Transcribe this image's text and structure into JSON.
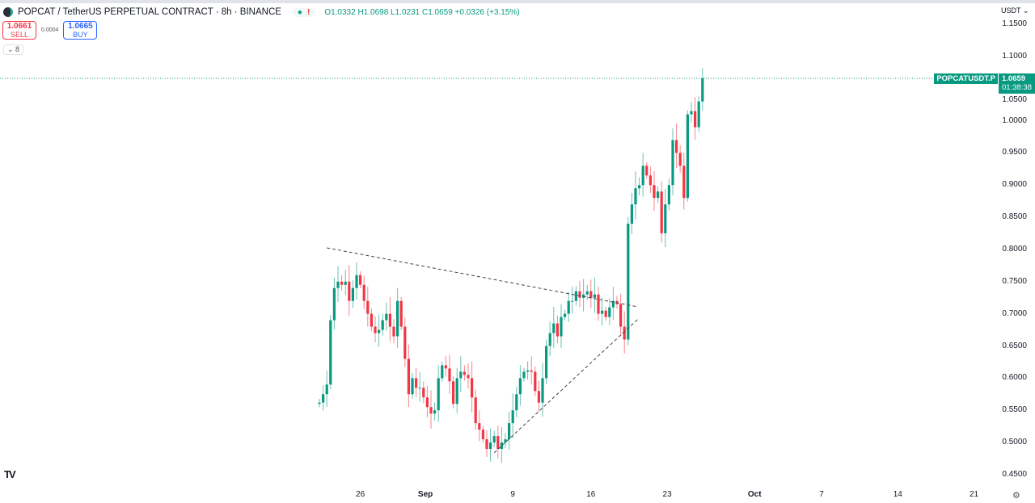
{
  "header": {
    "symbol": "POPCAT / TetherUS PERPETUAL CONTRACT · 8h · BINANCE",
    "status_dot": "●",
    "warning": "!",
    "ohlc": "O1.0332 H1.0698 L1.0231 C1.0659 +0.0326 (+3.15%)"
  },
  "trade": {
    "sell_price": "1.0661",
    "sell_label": "SELL",
    "spread": "0.0004",
    "buy_price": "1.0665",
    "buy_label": "BUY",
    "indicators_toggle": "⌄ 8"
  },
  "axis": {
    "currency": "USDT ⌄",
    "ticker_tag": "POPCATUSDT.P",
    "last_price": "1.0659",
    "countdown": "01:38:38",
    "settings_icon": "⚙"
  },
  "colors": {
    "up": "#089981",
    "down": "#f23645",
    "accent": "#089981"
  },
  "chart_data": {
    "type": "candlestick",
    "title": "POPCAT / TetherUS PERPETUAL CONTRACT · 8h · BINANCE",
    "ylim": [
      0.45,
      1.15
    ],
    "y_ticks": [
      "1.1500",
      "1.1000",
      "1.0500",
      "1.0000",
      "0.9500",
      "0.9000",
      "0.8500",
      "0.8000",
      "0.7500",
      "0.7000",
      "0.6500",
      "0.6000",
      "0.5500",
      "0.5000",
      "0.4500"
    ],
    "x_ticks": [
      {
        "label": "26",
        "candle": 11
      },
      {
        "label": "Sep",
        "candle": 28.5
      },
      {
        "label": "9",
        "candle": 52
      },
      {
        "label": "16",
        "candle": 73
      },
      {
        "label": "23",
        "candle": 93.5
      },
      {
        "label": "Oct",
        "candle": 117
      },
      {
        "label": "7",
        "candle": 135
      },
      {
        "label": "14",
        "candle": 155.5
      },
      {
        "label": "21",
        "candle": 176
      }
    ],
    "first_open": 0.56,
    "close": [
      0.562,
      0.575,
      0.59,
      0.69,
      0.74,
      0.75,
      0.745,
      0.75,
      0.72,
      0.74,
      0.76,
      0.745,
      0.72,
      0.7,
      0.68,
      0.67,
      0.675,
      0.69,
      0.7,
      0.68,
      0.665,
      0.72,
      0.68,
      0.63,
      0.575,
      0.6,
      0.585,
      0.585,
      0.57,
      0.555,
      0.545,
      0.55,
      0.6,
      0.62,
      0.615,
      0.595,
      0.56,
      0.6,
      0.61,
      0.605,
      0.6,
      0.57,
      0.53,
      0.52,
      0.505,
      0.49,
      0.5,
      0.51,
      0.49,
      0.5,
      0.505,
      0.53,
      0.55,
      0.575,
      0.6,
      0.61,
      0.612,
      0.61,
      0.58,
      0.562,
      0.6,
      0.65,
      0.67,
      0.685,
      0.665,
      0.695,
      0.7,
      0.72,
      0.72,
      0.735,
      0.725,
      0.73,
      0.735,
      0.725,
      0.73,
      0.7,
      0.705,
      0.695,
      0.71,
      0.72,
      0.715,
      0.68,
      0.66,
      0.84,
      0.87,
      0.895,
      0.9,
      0.93,
      0.915,
      0.9,
      0.88,
      0.89,
      0.825,
      0.87,
      0.9,
      0.97,
      0.95,
      0.93,
      0.88,
      1.01,
      1.015,
      0.99,
      1.03,
      1.0659
    ],
    "last_price": 1.0659,
    "trendlines": [
      {
        "style": "dashed",
        "from": [
          2,
          0.8025
        ],
        "to": [
          85.5,
          0.711
        ]
      },
      {
        "style": "dashed",
        "from": [
          47,
          0.484
        ],
        "to": [
          85.5,
          0.691
        ]
      }
    ]
  }
}
